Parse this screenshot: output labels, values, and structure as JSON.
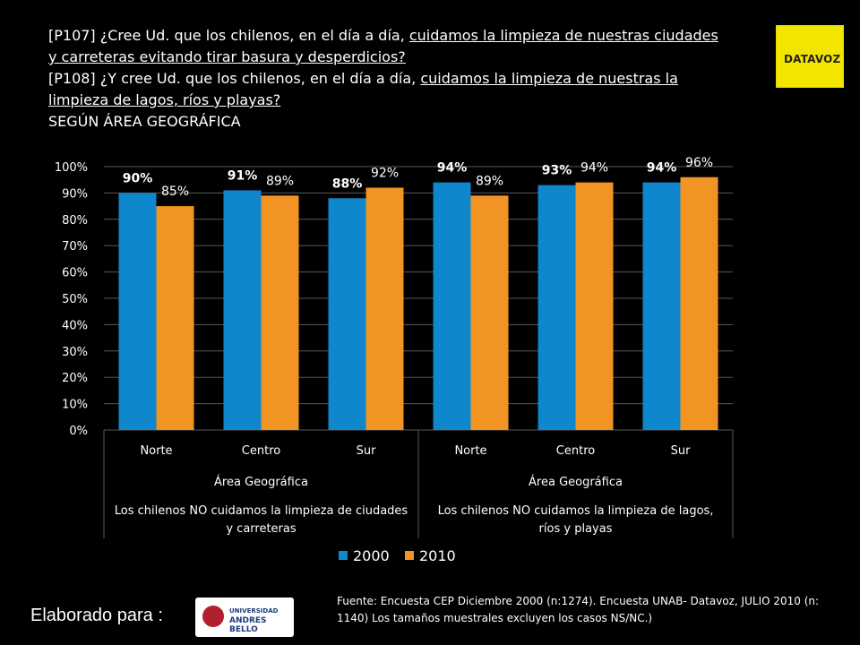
{
  "title": {
    "p107_prefix": "[P107] ¿Cree Ud. que los chilenos, en el día a día, ",
    "p107_underlined": "cuidamos la limpieza de nuestras ciudades y carreteras evitando tirar basura y desperdicios?",
    "p108_prefix": "[P108] ¿Y cree Ud. que los chilenos, en el día a día, ",
    "p108_underlined": "cuidamos la limpieza de nuestras la limpieza de lagos, ríos y playas?",
    "subtitle": "SEGÚN ÁREA GEOGRÁFICA"
  },
  "logo_text": "DATAVOZ",
  "colors": {
    "s2000": "#0e87cc",
    "s2010": "#f29424",
    "grid": "#595959"
  },
  "chart_data": {
    "type": "bar",
    "categories": [
      "Norte",
      "Centro",
      "Sur",
      "Norte",
      "Centro",
      "Sur"
    ],
    "groups": [
      {
        "label": "Área Geográfica",
        "question": "Los chilenos NO cuidamos la limpieza de ciudades y carreteras",
        "categories": [
          0,
          1,
          2
        ]
      },
      {
        "label": "Área Geográfica",
        "question": "Los chilenos NO cuidamos la limpieza de lagos, ríos y playas",
        "categories": [
          3,
          4,
          5
        ]
      }
    ],
    "series": [
      {
        "name": "2000",
        "values": [
          90,
          91,
          88,
          94,
          93,
          94
        ],
        "labels": [
          "90%",
          "91%",
          "88%",
          "94%",
          "93%",
          "94%"
        ]
      },
      {
        "name": "2010",
        "values": [
          85,
          89,
          92,
          89,
          94,
          96
        ],
        "labels": [
          "85%",
          "89%",
          "92%",
          "89%",
          "94%",
          "96%"
        ]
      }
    ],
    "ylim": [
      0,
      100
    ],
    "yticks": [
      "0%",
      "10%",
      "20%",
      "30%",
      "40%",
      "50%",
      "60%",
      "70%",
      "80%",
      "90%",
      "100%"
    ],
    "grid": true,
    "legend": "bottom"
  },
  "footer": {
    "prepared_for": "Elaborado para :",
    "unab_line1": "UNIVERSIDAD",
    "unab_line2": "ANDRES BELLO",
    "source": "Fuente: Encuesta CEP Diciembre 2000 (n:1274). Encuesta UNAB- Datavoz, JULIO 2010 (n: 1140)  Los tamaños muestrales excluyen los casos NS/NC.)"
  }
}
